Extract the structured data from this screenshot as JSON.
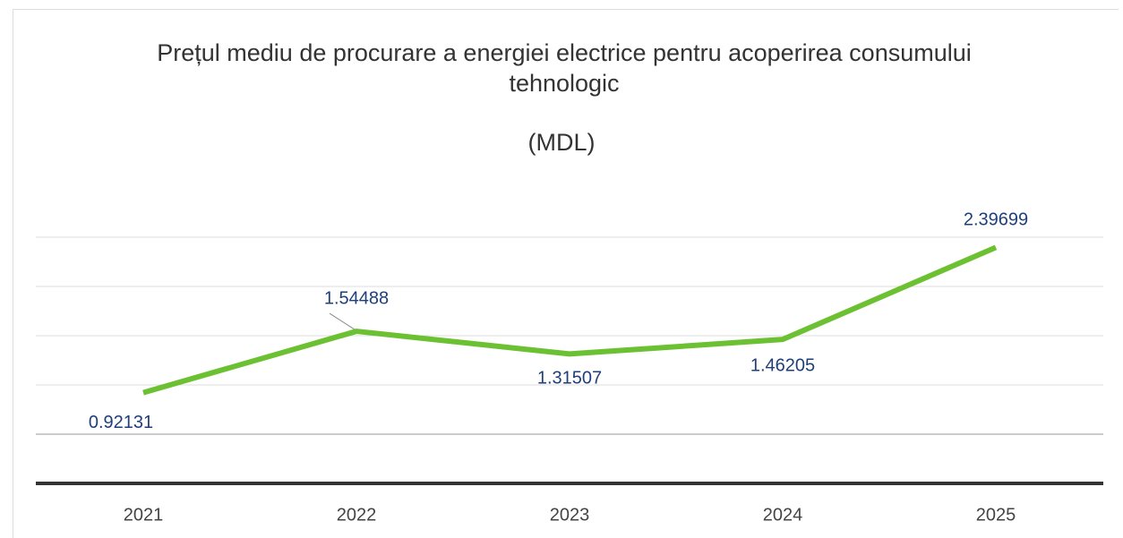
{
  "chart_data": {
    "type": "line",
    "title": "Prețul mediu de procurare a energiei electrice pentru acoperirea consumului tehnologic",
    "subtitle": "(MDL)",
    "categories": [
      "2021",
      "2022",
      "2023",
      "2024",
      "2025"
    ],
    "values": [
      0.92131,
      1.54488,
      1.31507,
      1.46205,
      2.39699
    ],
    "color": "#6cc133",
    "ylim": [
      0,
      3
    ],
    "yticks": [
      0.5,
      1,
      1.5,
      2,
      2.5
    ],
    "grid": true
  }
}
